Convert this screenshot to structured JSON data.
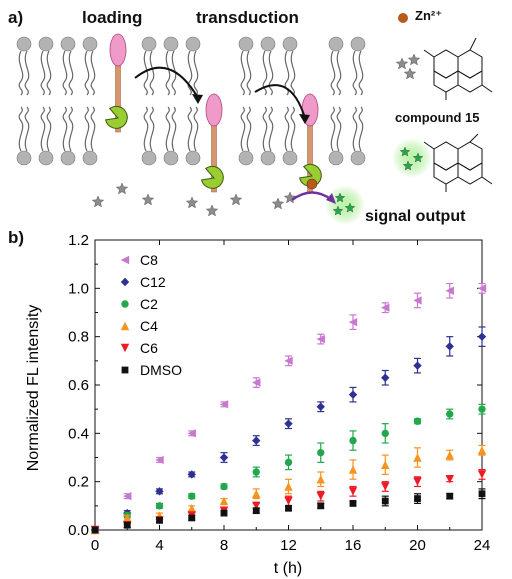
{
  "panel_a": {
    "label": "a)",
    "stage_loading": "loading",
    "stage_transduction": "transduction",
    "zn_label": "Zn²⁺",
    "compound_label": "compound 15",
    "signal_label": "signal output"
  },
  "panel_b": {
    "label": "b)"
  },
  "colors": {
    "C8": "#c779cf",
    "C12": "#2e3191",
    "C2": "#22a84a",
    "C4": "#f7931e",
    "C6": "#ed1c24",
    "DMSO": "#111111",
    "lipid_head": "#b3b3b3",
    "probe_head": "#f09ac9",
    "probe_stalk": "#d9956c",
    "pacman": "#9acd32",
    "zn_ion": "#b85a1b",
    "arrow_out": "#7030a0"
  },
  "chart_data": {
    "type": "scatter",
    "xlabel": "t (h)",
    "ylabel": "Normalized FL intensity",
    "xlim": [
      0,
      24
    ],
    "ylim": [
      0,
      1.2
    ],
    "xticks": [
      "0",
      "4",
      "8",
      "12",
      "16",
      "20",
      "24"
    ],
    "yticks": [
      "0.0",
      "0.2",
      "0.4",
      "0.6",
      "0.8",
      "1.0",
      "1.2"
    ],
    "grid": false,
    "legend_position": "top-left",
    "x": [
      0,
      2,
      4,
      6,
      8,
      10,
      12,
      14,
      16,
      18,
      20,
      22,
      24
    ],
    "series": [
      {
        "name": "C8",
        "marker": "triangle-left",
        "values": [
          0.0,
          0.14,
          0.29,
          0.4,
          0.52,
          0.61,
          0.7,
          0.79,
          0.86,
          0.92,
          0.95,
          0.99,
          1.0
        ],
        "errors": [
          0.0,
          0.01,
          0.01,
          0.01,
          0.01,
          0.02,
          0.02,
          0.02,
          0.03,
          0.02,
          0.03,
          0.03,
          0.02
        ]
      },
      {
        "name": "C12",
        "marker": "diamond",
        "values": [
          0.0,
          0.07,
          0.16,
          0.23,
          0.3,
          0.37,
          0.44,
          0.51,
          0.56,
          0.63,
          0.68,
          0.76,
          0.8
        ],
        "errors": [
          0.0,
          0.01,
          0.01,
          0.01,
          0.02,
          0.02,
          0.02,
          0.02,
          0.03,
          0.03,
          0.03,
          0.04,
          0.04
        ]
      },
      {
        "name": "C2",
        "marker": "circle",
        "values": [
          0.0,
          0.06,
          0.1,
          0.14,
          0.18,
          0.24,
          0.28,
          0.32,
          0.37,
          0.4,
          0.45,
          0.48,
          0.5
        ],
        "errors": [
          0.0,
          0.01,
          0.01,
          0.01,
          0.01,
          0.02,
          0.03,
          0.04,
          0.04,
          0.04,
          0.01,
          0.02,
          0.02
        ]
      },
      {
        "name": "C4",
        "marker": "triangle-up",
        "values": [
          0.0,
          0.05,
          0.06,
          0.09,
          0.12,
          0.15,
          0.18,
          0.21,
          0.25,
          0.27,
          0.3,
          0.31,
          0.33
        ],
        "errors": [
          0.0,
          0.01,
          0.01,
          0.01,
          0.01,
          0.02,
          0.03,
          0.03,
          0.04,
          0.04,
          0.04,
          0.02,
          0.02
        ]
      },
      {
        "name": "C6",
        "marker": "triangle-down",
        "values": [
          0.0,
          0.02,
          0.04,
          0.06,
          0.08,
          0.1,
          0.12,
          0.14,
          0.16,
          0.18,
          0.2,
          0.21,
          0.23
        ],
        "errors": [
          0.0,
          0.01,
          0.01,
          0.01,
          0.01,
          0.01,
          0.02,
          0.02,
          0.02,
          0.02,
          0.02,
          0.01,
          0.02
        ]
      },
      {
        "name": "DMSO",
        "marker": "square",
        "values": [
          0.0,
          0.02,
          0.04,
          0.05,
          0.07,
          0.08,
          0.09,
          0.1,
          0.11,
          0.12,
          0.13,
          0.14,
          0.15
        ],
        "errors": [
          0.0,
          0.01,
          0.01,
          0.01,
          0.01,
          0.01,
          0.01,
          0.01,
          0.01,
          0.02,
          0.02,
          0.01,
          0.02
        ]
      }
    ]
  }
}
